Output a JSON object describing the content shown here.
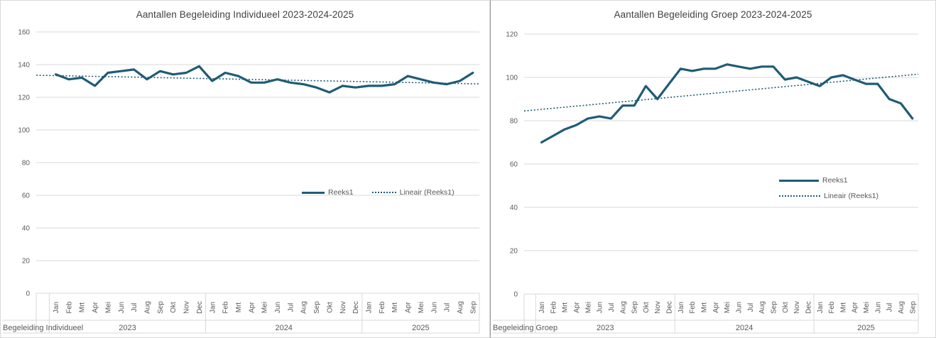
{
  "colors": {
    "series_line": "#1f5c75",
    "trend_line": "#1f5c75",
    "gridline": "#d9d9d9",
    "axis_text": "#595959",
    "title_text": "#404040",
    "panel_border": "#d9d9d9",
    "panel_divider": "#9a9a9a"
  },
  "month_names": [
    "Jan",
    "Feb",
    "Mrt",
    "Apr",
    "Mei",
    "Jun",
    "Jul",
    "Aug",
    "Sep",
    "Okt",
    "Nov",
    "Dec"
  ],
  "charts": [
    {
      "title": "Aantallen Begeleiding Individueel 2023-2024-2025",
      "row_label": "Begeleiding Individueel",
      "legend": {
        "series_label": "Reeks1",
        "trend_label": "Lineair (Reeks1)"
      },
      "chart_data": {
        "type": "line",
        "title": "Aantallen Begeleiding Individueel 2023-2024-2025",
        "xlabel": "",
        "ylabel": "",
        "ylim": [
          0,
          160
        ],
        "ytick_step": 20,
        "grid": true,
        "legend_position": "inside-center",
        "series_name": "Reeks1",
        "year_groups": [
          {
            "label": "2023",
            "values": [
              134,
              131,
              132,
              127,
              135,
              136,
              137,
              131,
              136,
              134,
              135,
              139
            ]
          },
          {
            "label": "2024",
            "values": [
              130,
              135,
              133,
              129,
              129,
              131,
              129,
              128,
              126,
              123,
              127,
              126
            ]
          },
          {
            "label": "2025",
            "values": [
              127,
              127,
              128,
              133,
              131,
              129,
              128,
              130,
              135
            ]
          }
        ],
        "trendline": {
          "label": "Lineair (Reeks1)",
          "style": "dotted",
          "start_value": 133.5,
          "end_value": 128.2
        }
      }
    },
    {
      "title": "Aantallen Begeleiding Groep 2023-2024-2025",
      "row_label": "Begeleiding Groep",
      "legend": {
        "series_label": "Reeks1",
        "trend_label": "Lineair (Reeks1)"
      },
      "chart_data": {
        "type": "line",
        "title": "Aantallen Begeleiding Groep 2023-2024-2025",
        "xlabel": "",
        "ylabel": "",
        "ylim": [
          0,
          120
        ],
        "ytick_step": 20,
        "grid": true,
        "legend_position": "inside-right",
        "series_name": "Reeks1",
        "year_groups": [
          {
            "label": "2023",
            "values": [
              70,
              73,
              76,
              78,
              81,
              82,
              81,
              87,
              87,
              96,
              90,
              97
            ]
          },
          {
            "label": "2024",
            "values": [
              104,
              103,
              104,
              104,
              106,
              105,
              104,
              105,
              105,
              99,
              100,
              98
            ]
          },
          {
            "label": "2025",
            "values": [
              96,
              100,
              101,
              99,
              97,
              97,
              90,
              88,
              81
            ]
          }
        ],
        "trendline": {
          "label": "Lineair (Reeks1)",
          "style": "dotted",
          "start_value": 84.5,
          "end_value": 101.5
        }
      }
    }
  ]
}
